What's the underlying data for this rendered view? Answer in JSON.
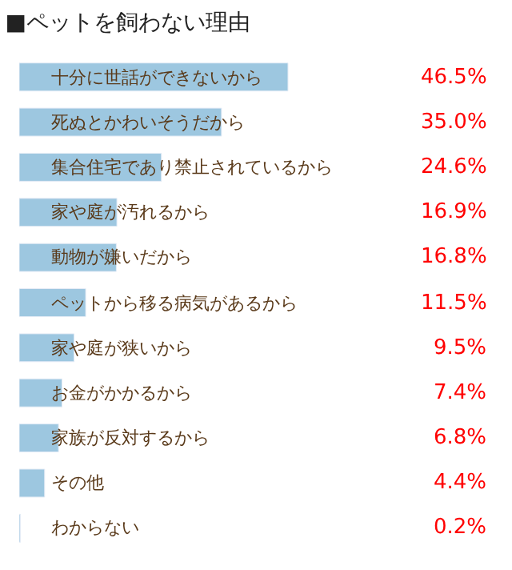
{
  "chart_data": {
    "type": "bar",
    "orientation": "horizontal",
    "title": "■ペットを飼わない理由",
    "categories": [
      "十分に世話ができないから",
      "死ぬとかわいそうだから",
      "集合住宅であり禁止されているから",
      "家や庭が汚れるから",
      "動物が嫌いだから",
      "ペットから移る病気があるから",
      "家や庭が狭いから",
      "お金がかかるから",
      "家族が反対するから",
      "その他",
      "わからない"
    ],
    "values": [
      46.5,
      35.0,
      24.6,
      16.9,
      16.8,
      11.5,
      9.5,
      7.4,
      6.8,
      4.4,
      0.2
    ],
    "value_labels": [
      "46.5%",
      "35.0%",
      "24.6%",
      "16.9%",
      "16.8%",
      "11.5%",
      "9.5%",
      "7.4%",
      "6.8%",
      "4.4%",
      "0.2%"
    ],
    "color": "#9dc7e0"
  }
}
